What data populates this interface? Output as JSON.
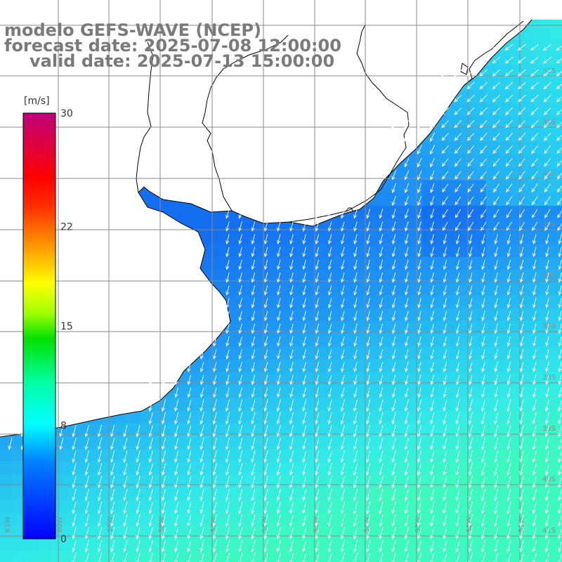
{
  "title": {
    "line1": "modelo GEFS-WAVE (NCEP)",
    "line2": "forecast date: 2025-07-08 12:00:00",
    "line3": "valid date: 2025-07-13 15:00:00"
  },
  "colorbar": {
    "unit": "[m/s]",
    "min": 0,
    "max": 30,
    "ticks": [
      "30",
      "22",
      "15",
      "8",
      "0"
    ],
    "tick_values": [
      30,
      22,
      15,
      8,
      0
    ]
  },
  "lat_labels": [
    "32S",
    "33S",
    "34S",
    "35S",
    "36S",
    "37S",
    "38S",
    "39S",
    "40S",
    "41S"
  ],
  "lon_labels": [
    "61W",
    "60W",
    "59W",
    "58W",
    "57W",
    "56W",
    "55W",
    "54W",
    "53W",
    "52W",
    "51W"
  ],
  "colors": {
    "land": "#ffffff",
    "coast": "#000000",
    "grid": "#8a8a8a",
    "arrow": "#ffffff",
    "title": "#7a7a7a"
  },
  "field": {
    "variable": "wind speed",
    "range_shown_ms": [
      7,
      11
    ]
  }
}
